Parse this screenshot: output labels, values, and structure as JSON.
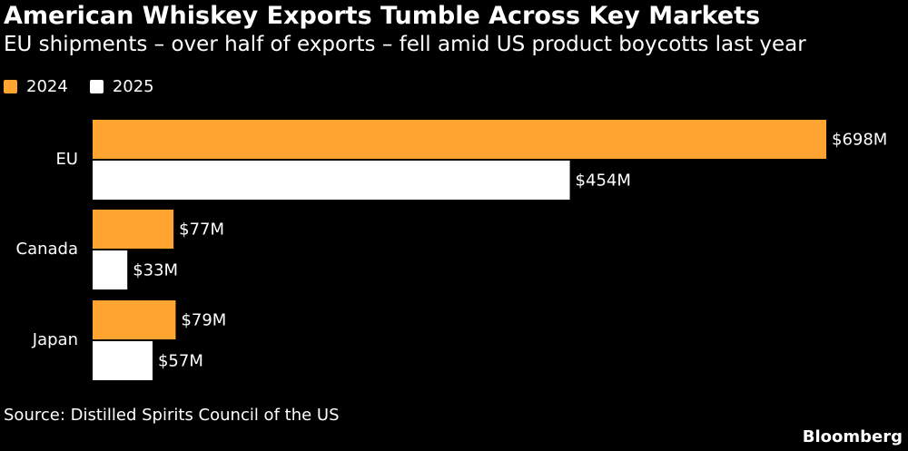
{
  "title": "American Whiskey Exports Tumble Across Key Markets",
  "subtitle": "EU shipments – over half of exports – fell amid US product boycotts last year",
  "source": "Source: Distilled Spirits Council of the US",
  "brand": "Bloomberg",
  "colors": {
    "background": "#000000",
    "series_2024": "#FFA431",
    "series_2025": "#FFFFFF",
    "text": "#FFFFFF"
  },
  "chart_data": {
    "type": "bar",
    "orientation": "horizontal",
    "categories": [
      "EU",
      "Canada",
      "Japan"
    ],
    "series": [
      {
        "name": "2024",
        "color": "#FFA431",
        "values": [
          698,
          77,
          79
        ],
        "labels": [
          "$698M",
          "$77M",
          "$79M"
        ]
      },
      {
        "name": "2025",
        "color": "#FFFFFF",
        "values": [
          454,
          33,
          57
        ],
        "labels": [
          "$454M",
          "$33M",
          "$57M"
        ]
      }
    ],
    "unit": "$M",
    "xlim": [
      0,
      698
    ],
    "grid": false,
    "legend_position": "top-left"
  }
}
